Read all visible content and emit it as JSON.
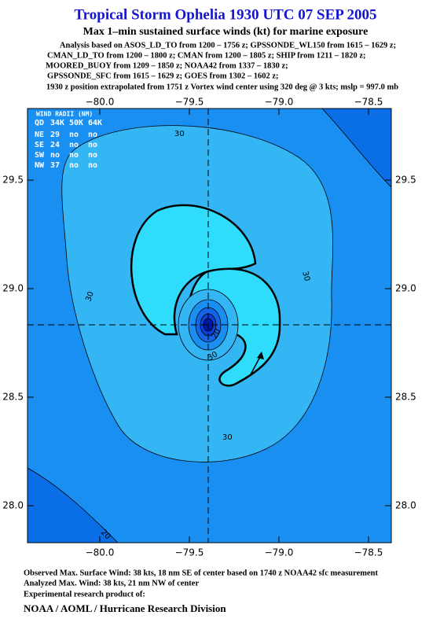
{
  "header": {
    "title": "Tropical Storm Ophelia 1930 UTC 07 SEP 2005",
    "subtitle": "Max 1–min sustained surface winds (kt) for marine exposure",
    "lines": [
      "Analysis based on  ASOS_LD_TO from 1200 – 1756 z;  GPSSONDE_WL150 from 1615 – 1629 z;",
      "CMAN_LD_TO from 1200 – 1800 z;  CMAN from 1200 – 1805 z;  SHIP from 1211 – 1820 z;",
      "MOORED_BUOY from 1209 – 1850 z;  NOAA42 from 1337 – 1830 z;",
      "GPSSONDE_SFC from 1615 – 1629 z;  GOES from 1302 – 1602 z;",
      "1930 z position extrapolated from 1751 z Vortex wind center using 320 deg @ 3 kts; mslp = 997.0 mb"
    ]
  },
  "map": {
    "xticks": [
      {
        "value": -80.0,
        "label": "−80.0"
      },
      {
        "value": -79.5,
        "label": "−79.5"
      },
      {
        "value": -79.0,
        "label": "−79.0"
      },
      {
        "value": -78.5,
        "label": "−78.5"
      }
    ],
    "yticks": [
      29.5,
      {
        "value": 29.0,
        "label": "29.0"
      },
      28.5,
      {
        "value": 28.0,
        "label": "28.0"
      }
    ],
    "wind_radii": {
      "title": "WIND RADII (NM)",
      "header": [
        "QD",
        "34K",
        "50K",
        "64K"
      ],
      "rows": [
        [
          "NE",
          29,
          "no",
          "no"
        ],
        [
          "SE",
          24,
          "no",
          "no"
        ],
        [
          "SW",
          "no",
          "no",
          "no"
        ],
        [
          "NW",
          37,
          "no",
          "no"
        ]
      ]
    },
    "contour_labels": [
      "30",
      "30",
      "30",
      "20",
      "30",
      "30",
      "20"
    ]
  },
  "footer": {
    "lines": [
      "Observed Max. Surface Wind: 38 kts, 18 nm SE of center based on 1740 z NOAA42 sfc measurement",
      "Analyzed Max. Wind: 38 kts, 21 nm NW of center",
      "Experimental research product of:"
    ],
    "org": "NOAA / AOML / Hurricane Research Division"
  }
}
